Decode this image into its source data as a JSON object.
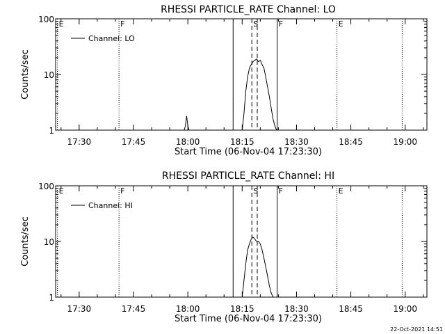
{
  "chart_data": [
    {
      "type": "line",
      "title": "RHESSI PARTICLE_RATE Channel: LO",
      "xlabel": "Start Time (06-Nov-04 17:23:30)",
      "ylabel": "Counts/sec",
      "yscale": "log",
      "ylim": [
        1,
        100
      ],
      "xlim": [
        "17:23:30",
        "19:06:00"
      ],
      "grid": false,
      "legend_position": "top-left",
      "x_ticks": [
        "17:30",
        "17:45",
        "18:00",
        "18:15",
        "18:30",
        "18:45",
        "19:00"
      ],
      "y_ticks": [
        "1",
        "10",
        "100"
      ],
      "series": [
        {
          "name": "Channel: LO",
          "x": [
            "17:59:00",
            "17:59:20",
            "17:59:40",
            "18:00:00",
            "18:00:20",
            "18:15:00",
            "18:15:30",
            "18:16:00",
            "18:16:30",
            "18:17:00",
            "18:17:30",
            "18:18:00",
            "18:18:30",
            "18:19:00",
            "18:19:30",
            "18:20:00",
            "18:20:30",
            "18:21:00",
            "18:21:30",
            "18:22:00",
            "18:22:30",
            "18:23:00",
            "18:23:30",
            "18:24:00",
            "18:24:30"
          ],
          "y": [
            1,
            1.2,
            1.8,
            1.2,
            1,
            1,
            2,
            5,
            9,
            13,
            15,
            17,
            18,
            19,
            17,
            18,
            15,
            13,
            9,
            6,
            4,
            2.5,
            1.6,
            1.2,
            1
          ]
        }
      ],
      "markers": [
        {
          "label": "E",
          "time": "17:24:00",
          "style": "dotted"
        },
        {
          "label": "F",
          "time": "17:41:00",
          "style": "dotted"
        },
        {
          "label": "",
          "time": "18:12:30",
          "style": "solid"
        },
        {
          "label": "S",
          "time": "18:17:40",
          "style": "dashed"
        },
        {
          "label": "",
          "time": "18:19:10",
          "style": "dashed"
        },
        {
          "label": "F",
          "time": "18:24:40",
          "style": "solid"
        },
        {
          "label": "E",
          "time": "18:41:10",
          "style": "dotted"
        },
        {
          "label": "",
          "time": "18:59:10",
          "style": "dotted"
        }
      ]
    },
    {
      "type": "line",
      "title": "RHESSI PARTICLE_RATE Channel: HI",
      "xlabel": "Start Time (06-Nov-04 17:23:30)",
      "ylabel": "Counts/sec",
      "yscale": "log",
      "ylim": [
        1,
        100
      ],
      "xlim": [
        "17:23:30",
        "19:06:00"
      ],
      "grid": false,
      "legend_position": "top-left",
      "x_ticks": [
        "17:30",
        "17:45",
        "18:00",
        "18:15",
        "18:30",
        "18:45",
        "19:00"
      ],
      "y_ticks": [
        "1",
        "10",
        "100"
      ],
      "series": [
        {
          "name": "Channel: HI",
          "x": [
            "18:15:00",
            "18:15:30",
            "18:16:00",
            "18:16:30",
            "18:17:00",
            "18:17:30",
            "18:18:00",
            "18:18:30",
            "18:19:00",
            "18:19:30",
            "18:20:00",
            "18:20:30",
            "18:21:00",
            "18:21:30",
            "18:22:00",
            "18:22:30",
            "18:23:00",
            "18:23:30"
          ],
          "y": [
            1,
            2,
            4,
            7,
            9,
            11,
            12,
            11,
            10,
            10,
            9,
            7,
            5,
            3.5,
            2.4,
            1.6,
            1.2,
            1
          ]
        }
      ],
      "markers": [
        {
          "label": "E",
          "time": "17:24:00",
          "style": "dotted"
        },
        {
          "label": "F",
          "time": "17:41:00",
          "style": "dotted"
        },
        {
          "label": "",
          "time": "18:12:30",
          "style": "solid"
        },
        {
          "label": "S",
          "time": "18:17:40",
          "style": "dashed"
        },
        {
          "label": "",
          "time": "18:19:10",
          "style": "dashed"
        },
        {
          "label": "F",
          "time": "18:24:40",
          "style": "solid"
        },
        {
          "label": "E",
          "time": "18:41:10",
          "style": "dotted"
        },
        {
          "label": "",
          "time": "18:59:10",
          "style": "dotted"
        }
      ]
    }
  ],
  "footer": {
    "timestamp": "22-Oct-2021 14:51"
  }
}
